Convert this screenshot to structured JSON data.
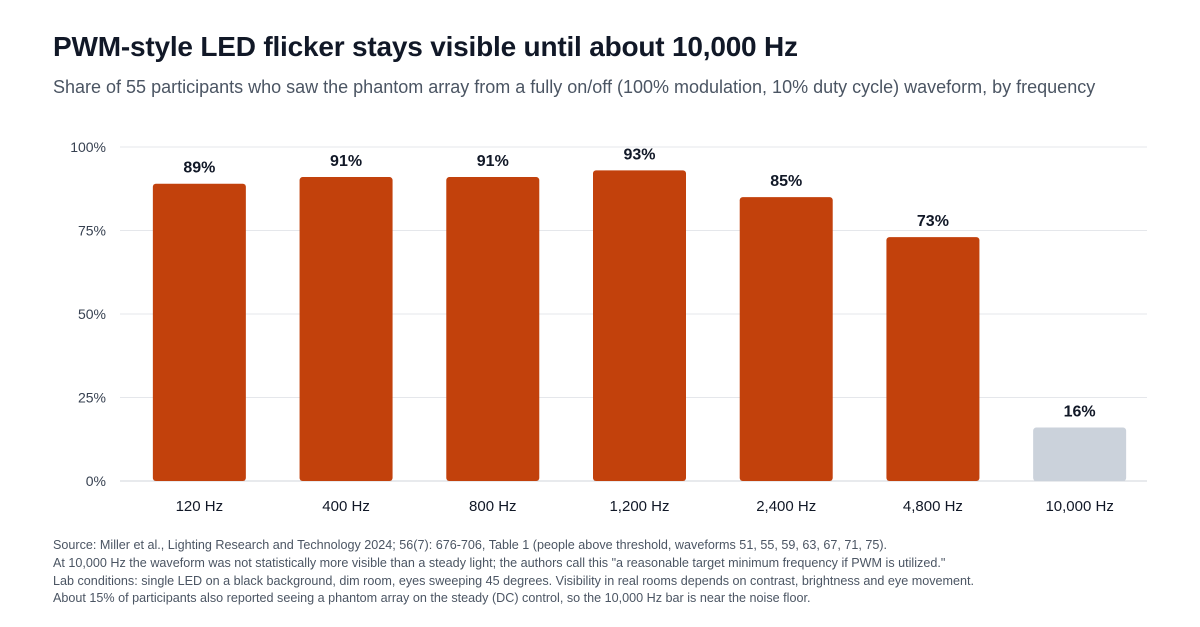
{
  "title": "PWM-style LED flicker stays visible until about 10,000 Hz",
  "subtitle": "Share of 55 participants who saw the phantom array from a fully on/off (100% modulation, 10% duty cycle) waveform, by frequency",
  "notes": [
    "Source: Miller et al., Lighting Research and Technology 2024; 56(7): 676-706, Table 1 (people above threshold, waveforms 51, 55, 59, 63, 67, 71, 75).",
    "At 10,000 Hz the waveform was not statistically more visible than a steady light; the authors call this \"a reasonable target minimum frequency if PWM is utilized.\"",
    "Lab conditions: single LED on a black background, dim room, eyes sweeping 45 degrees. Visibility in real rooms depends on contrast, brightness and eye movement.",
    "About 15% of participants also reported seeing a phantom array on the steady (DC) control, so the 10,000 Hz bar is near the noise floor."
  ],
  "chart_data": {
    "type": "bar",
    "categories": [
      "120 Hz",
      "400 Hz",
      "800 Hz",
      "1,200 Hz",
      "2,400 Hz",
      "4,800 Hz",
      "10,000 Hz"
    ],
    "values": [
      89,
      91,
      91,
      93,
      85,
      73,
      16
    ],
    "data_labels": [
      "89%",
      "91%",
      "91%",
      "93%",
      "85%",
      "73%",
      "16%"
    ],
    "highlight": [
      true,
      true,
      true,
      true,
      true,
      true,
      false
    ],
    "ylim": [
      0,
      100
    ],
    "yticks": [
      0,
      25,
      50,
      75,
      100
    ],
    "ytick_labels": [
      "0%",
      "25%",
      "50%",
      "75%",
      "100%"
    ],
    "xlabel": "",
    "ylabel": "",
    "grid": true,
    "colors": {
      "highlight": "#c2410c",
      "muted": "#cbd2db",
      "grid": "#e5e7eb"
    }
  }
}
